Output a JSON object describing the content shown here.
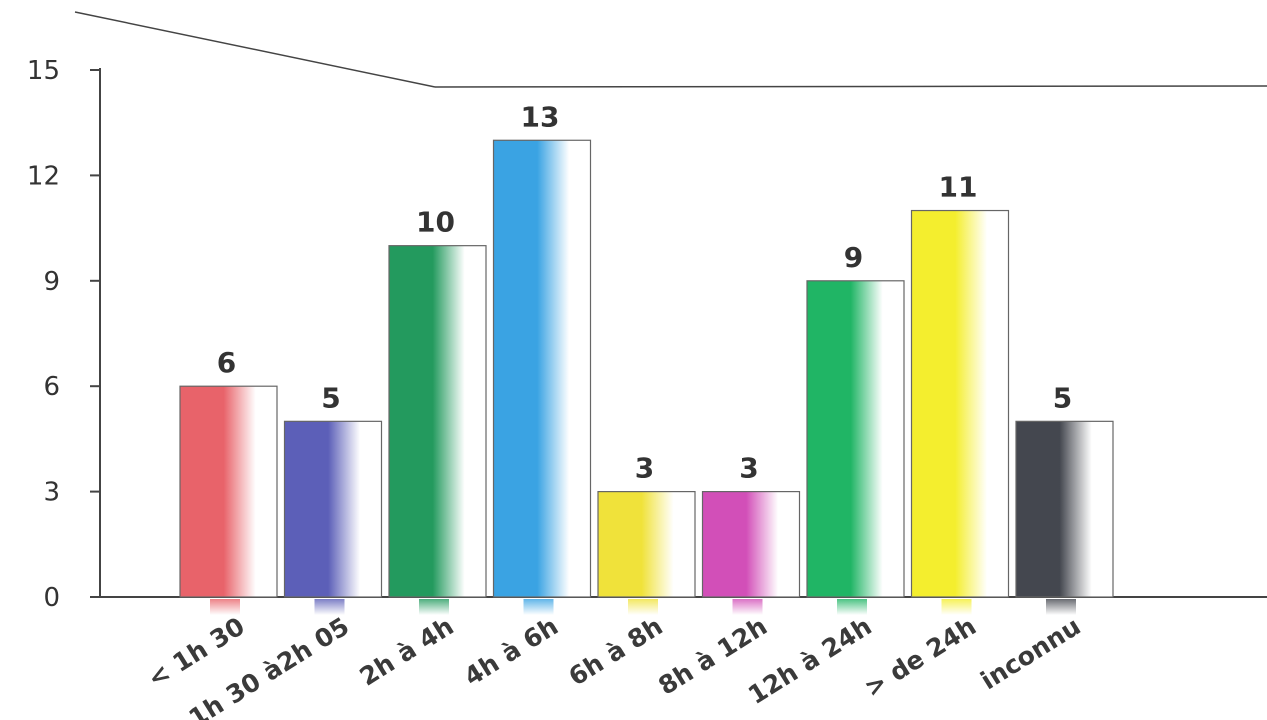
{
  "chart_data": {
    "type": "bar",
    "title": "",
    "xlabel": "",
    "ylabel": "",
    "ylim": [
      0,
      15
    ],
    "yticks": [
      0,
      3,
      6,
      9,
      12,
      15
    ],
    "categories": [
      "< 1h 30",
      "1h 30 à2h 05",
      "2h à 4h",
      "4h à 6h",
      "6h à 8h",
      "8h à 12h",
      "12h à 24h",
      "> de 24h",
      "inconnu"
    ],
    "values": [
      6,
      5,
      10,
      13,
      3,
      3,
      9,
      11,
      5
    ],
    "colors": [
      "#e8636a",
      "#5c5fb8",
      "#239a5e",
      "#3aa3e3",
      "#f0e23a",
      "#d24fb8",
      "#20b565",
      "#f4ee2e",
      "#44474f"
    ],
    "grid": false,
    "legend": "none"
  }
}
